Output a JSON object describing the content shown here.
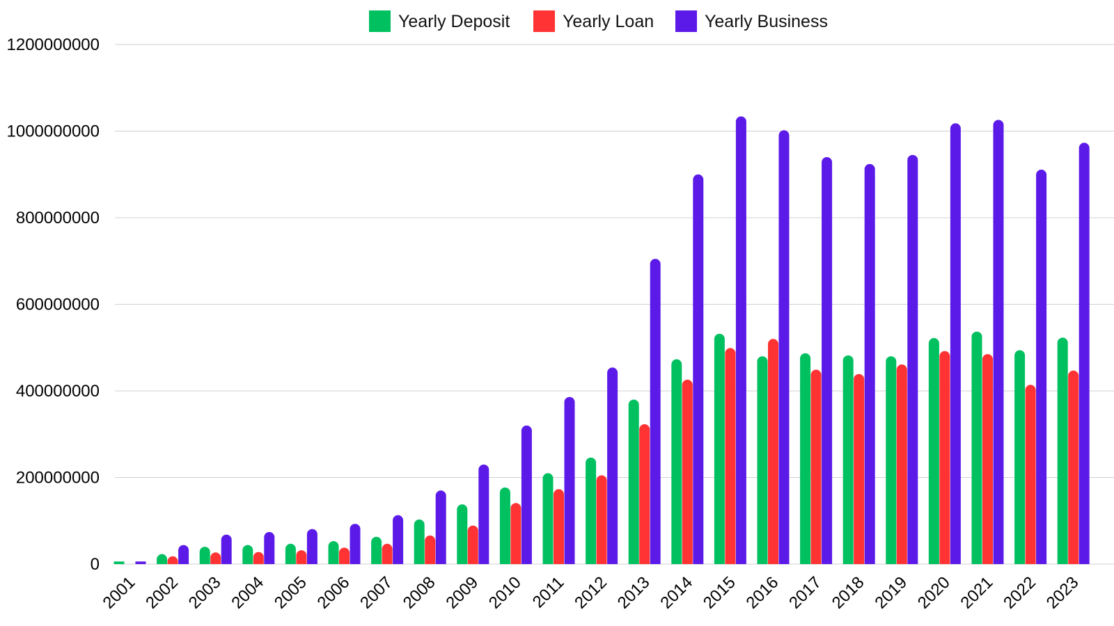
{
  "chart_data": {
    "type": "bar",
    "title": "",
    "xlabel": "",
    "ylabel": "",
    "ylim": [
      0,
      1200000000
    ],
    "yticks": [
      0,
      200000000,
      400000000,
      600000000,
      800000000,
      1000000000,
      1200000000
    ],
    "ytick_labels": [
      "0",
      "200000000",
      "400000000",
      "600000000",
      "800000000",
      "1000000000",
      "1200000000"
    ],
    "grid": true,
    "legend_position": "top-center",
    "categories": [
      "2001",
      "2002",
      "2003",
      "2004",
      "2005",
      "2006",
      "2007",
      "2008",
      "2009",
      "2010",
      "2011",
      "2012",
      "2013",
      "2014",
      "2015",
      "2016",
      "2017",
      "2018",
      "2019",
      "2020",
      "2021",
      "2022",
      "2023"
    ],
    "series": [
      {
        "name": "Yearly Deposit",
        "color": "#00c060",
        "values": [
          6000000,
          23000000,
          40000000,
          44000000,
          47000000,
          53000000,
          63000000,
          103000000,
          138000000,
          177000000,
          210000000,
          246000000,
          380000000,
          473000000,
          532000000,
          480000000,
          487000000,
          482000000,
          480000000,
          522000000,
          537000000,
          494000000,
          523000000
        ]
      },
      {
        "name": "Yearly Loan",
        "color": "#ff3333",
        "values": [
          0,
          18000000,
          27000000,
          28000000,
          32000000,
          38000000,
          47000000,
          66000000,
          89000000,
          141000000,
          173000000,
          205000000,
          323000000,
          426000000,
          499000000,
          520000000,
          449000000,
          439000000,
          461000000,
          492000000,
          485000000,
          414000000,
          447000000
        ]
      },
      {
        "name": "Yearly Business",
        "color": "#5b1ae8",
        "values": [
          6000000,
          44000000,
          68000000,
          74000000,
          81000000,
          93000000,
          113000000,
          170000000,
          230000000,
          320000000,
          386000000,
          454000000,
          705000000,
          900000000,
          1034000000,
          1002000000,
          940000000,
          924000000,
          945000000,
          1018000000,
          1026000000,
          911000000,
          973000000
        ]
      }
    ]
  }
}
